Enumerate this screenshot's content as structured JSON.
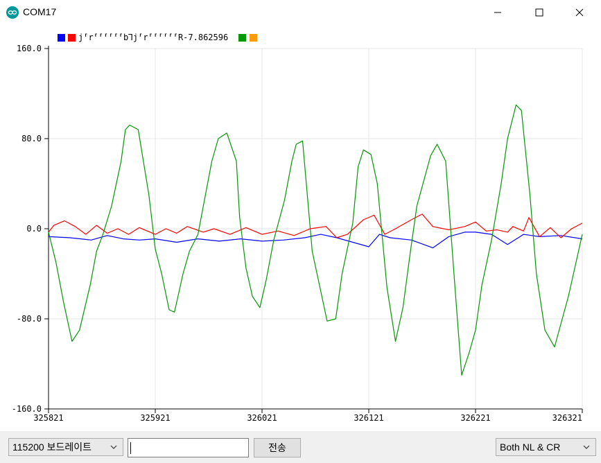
{
  "window": {
    "title": "COM17",
    "app_icon": "arduino-icon",
    "controls": [
      "minimize-icon",
      "maximize-icon",
      "close-icon"
    ]
  },
  "legend": {
    "label": "j⸢r⸢⸢⸢⸢⸢⸢b⅂j⸢r⸢⸢⸢⸢⸢⸢R-7.862596",
    "colors_left": [
      "#0000ff",
      "#ff0000"
    ],
    "colors_right": [
      "#009900",
      "#ff9900"
    ]
  },
  "chart_data": {
    "type": "line",
    "y_ticks": [
      "160.0",
      "80.0",
      "0.0",
      "-80.0",
      "-160.0"
    ],
    "x_ticks": [
      "325821",
      "325921",
      "326021",
      "326121",
      "326221",
      "326321"
    ],
    "xlim": [
      325821,
      326321
    ],
    "ylim": [
      -160,
      160
    ],
    "grid": true,
    "series": [
      {
        "color": "#0000ff",
        "x": [
          325821,
          325841,
          325861,
          325876,
          325891,
          325906,
          325921,
          325941,
          325961,
          325981,
          326001,
          326021,
          326041,
          326061,
          326076,
          326091,
          326106,
          326121,
          326131,
          326141,
          326161,
          326181,
          326196,
          326211,
          326221,
          326236,
          326251,
          326266,
          326281,
          326301,
          326321
        ],
        "y": [
          -7,
          -8,
          -10,
          -6,
          -9,
          -10,
          -9,
          -12,
          -9,
          -11,
          -9,
          -11,
          -10,
          -8,
          -5,
          -8,
          -12,
          -16,
          -5,
          -8,
          -10,
          -17,
          -7,
          -3,
          -3,
          -5,
          -14,
          -5,
          -7,
          -6,
          -9
        ]
      },
      {
        "color": "#ff0000",
        "x": [
          325821,
          325826,
          325836,
          325846,
          325856,
          325866,
          325876,
          325886,
          325896,
          325906,
          325921,
          325931,
          325941,
          325951,
          325966,
          325976,
          325991,
          326006,
          326021,
          326036,
          326051,
          326066,
          326081,
          326091,
          326101,
          326116,
          326126,
          326136,
          326146,
          326161,
          326171,
          326181,
          326196,
          326211,
          326221,
          326231,
          326241,
          326251,
          326256,
          326266,
          326271,
          326281,
          326291,
          326301,
          326311,
          326321
        ],
        "y": [
          -3,
          3,
          7,
          2,
          -5,
          3,
          -4,
          0,
          -5,
          1,
          -5,
          0,
          -4,
          2,
          -3,
          0,
          -5,
          1,
          -5,
          -2,
          -6,
          0,
          2,
          -8,
          -5,
          8,
          12,
          -5,
          0,
          8,
          13,
          2,
          -1,
          2,
          6,
          -2,
          -1,
          -3,
          2,
          -2,
          10,
          -7,
          1,
          -8,
          0,
          5
        ]
      },
      {
        "color": "#009900",
        "x": [
          325821,
          325828,
          325835,
          325843,
          325850,
          325860,
          325866,
          325872,
          325880,
          325889,
          325893,
          325897,
          325905,
          325915,
          325921,
          325927,
          325934,
          325939,
          325947,
          325953,
          325961,
          325967,
          325974,
          325980,
          325988,
          325997,
          326000,
          326006,
          326012,
          326019,
          326025,
          326032,
          326042,
          326049,
          326053,
          326059,
          326068,
          326082,
          326090,
          326096,
          326106,
          326111,
          326116,
          326123,
          326129,
          326138,
          326146,
          326153,
          326160,
          326166,
          326179,
          326185,
          326193,
          326202,
          326208,
          326215,
          326221,
          326227,
          326236,
          326245,
          326251,
          326259,
          326264,
          326272,
          326278,
          326286,
          326295,
          326308,
          326321
        ],
        "y": [
          -3,
          -30,
          -65,
          -100,
          -90,
          -50,
          -20,
          -5,
          20,
          60,
          88,
          92,
          88,
          30,
          -18,
          -40,
          -72,
          -74,
          -40,
          -20,
          -5,
          25,
          60,
          80,
          85,
          60,
          10,
          -35,
          -60,
          -70,
          -45,
          -10,
          25,
          60,
          75,
          78,
          -20,
          -82,
          -80,
          -40,
          5,
          55,
          70,
          66,
          40,
          -52,
          -100,
          -70,
          -20,
          20,
          65,
          75,
          60,
          -55,
          -130,
          -110,
          -90,
          -50,
          -10,
          40,
          80,
          110,
          105,
          30,
          -40,
          -90,
          -105,
          -60,
          -5
        ]
      }
    ]
  },
  "bottom": {
    "baud_label": "115200 보드레이트",
    "input_value": "",
    "send_label": "전송",
    "line_ending_label": "Both NL & CR"
  }
}
